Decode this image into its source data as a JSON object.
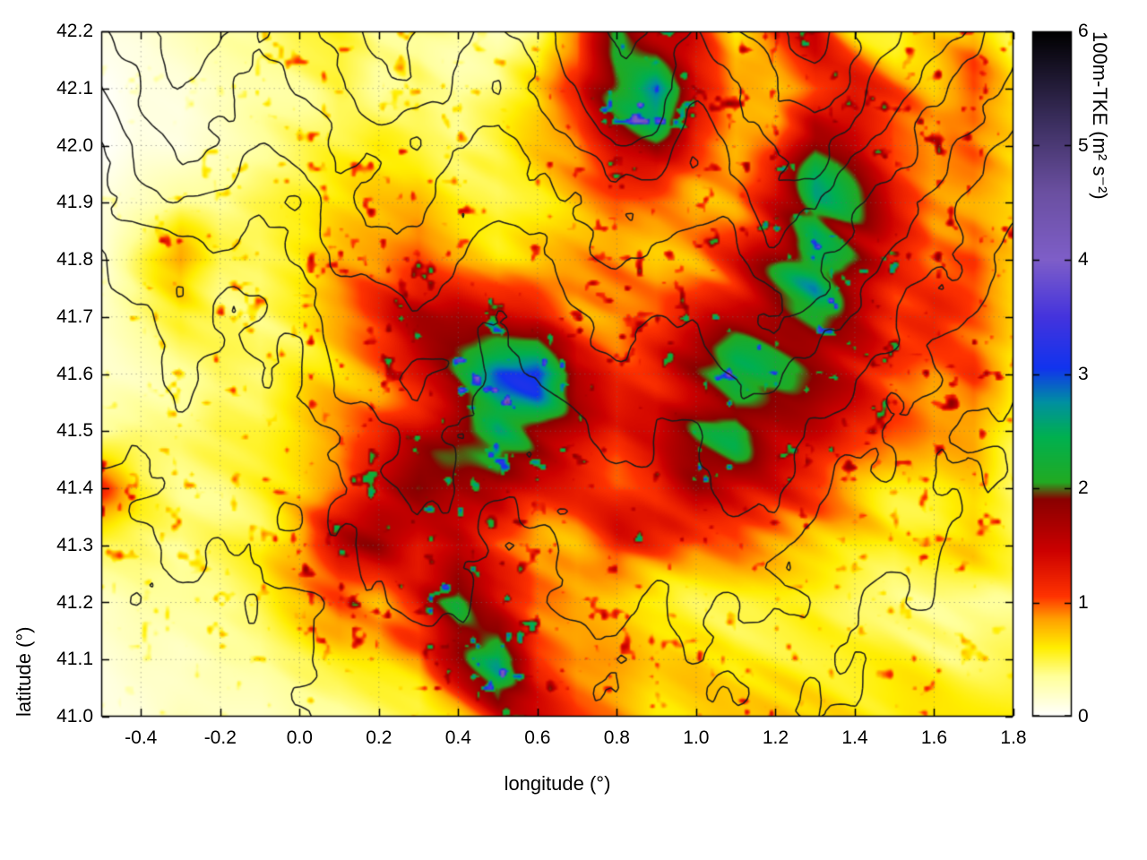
{
  "chart_data": {
    "type": "heatmap",
    "title": "",
    "xlabel": "longitude (°)",
    "ylabel": "latitude (°)",
    "x_range": [
      -0.5,
      1.8
    ],
    "y_range": [
      41.0,
      42.2
    ],
    "x_tick_labels": [
      "-0.4",
      "-0.2",
      "0.0",
      "0.2",
      "0.4",
      "0.6",
      "0.8",
      "1.0",
      "1.2",
      "1.4",
      "1.6",
      "1.8"
    ],
    "y_tick_labels": [
      "41.0",
      "41.1",
      "41.2",
      "41.3",
      "41.4",
      "41.5",
      "41.6",
      "41.7",
      "41.8",
      "41.9",
      "42.0",
      "42.1",
      "42.2"
    ],
    "grid_on": true,
    "colorbar": {
      "label": "100m-TKE (m² s⁻²)",
      "range": [
        0,
        6
      ],
      "tick_labels": [
        "0",
        "1",
        "2",
        "3",
        "4",
        "5",
        "6"
      ],
      "palette_stops": [
        [
          0.0,
          "#ffffff"
        ],
        [
          0.35,
          "#ffff99"
        ],
        [
          0.6,
          "#ffee00"
        ],
        [
          0.85,
          "#ffa000"
        ],
        [
          1.05,
          "#ff3300"
        ],
        [
          1.45,
          "#cc0000"
        ],
        [
          1.9,
          "#8a0000"
        ],
        [
          2.05,
          "#22aa22"
        ],
        [
          2.45,
          "#00b050"
        ],
        [
          2.75,
          "#0090a0"
        ],
        [
          3.05,
          "#1133ee"
        ],
        [
          3.5,
          "#4433dd"
        ],
        [
          4.0,
          "#7e5ec8"
        ],
        [
          4.6,
          "#6a4fa0"
        ],
        [
          5.2,
          "#3c2f60"
        ],
        [
          6.0,
          "#000000"
        ]
      ]
    },
    "tke_grid": {
      "units": "m² s⁻²",
      "lon_min": -0.5,
      "lon_step": 0.1,
      "lat_max": 42.2,
      "lat_step": 0.1,
      "row_order": "north_to_south",
      "values": [
        [
          0.1,
          0.1,
          0.2,
          0.3,
          0.4,
          0.5,
          0.5,
          0.4,
          0.5,
          0.3,
          0.2,
          0.4,
          1.0,
          2.6,
          1.6,
          1.2,
          0.6,
          1.0,
          1.4,
          0.8,
          0.5,
          0.6,
          0.8,
          0.5
        ],
        [
          0.0,
          0.1,
          0.1,
          0.2,
          0.3,
          0.4,
          0.5,
          0.3,
          0.4,
          0.3,
          0.4,
          0.6,
          1.0,
          2.0,
          3.0,
          1.4,
          0.8,
          0.7,
          1.0,
          1.2,
          0.9,
          0.7,
          1.0,
          0.6
        ],
        [
          0.0,
          0.1,
          0.1,
          0.2,
          0.3,
          0.4,
          0.5,
          0.6,
          0.5,
          0.4,
          0.5,
          0.7,
          0.9,
          1.4,
          1.6,
          1.0,
          0.7,
          0.9,
          1.8,
          1.5,
          1.0,
          0.8,
          0.9,
          0.7
        ],
        [
          0.1,
          0.2,
          0.3,
          0.3,
          0.4,
          0.5,
          0.6,
          0.7,
          0.8,
          0.6,
          0.5,
          0.6,
          0.8,
          1.0,
          0.9,
          0.8,
          1.0,
          1.6,
          2.4,
          1.8,
          1.2,
          0.9,
          0.8,
          0.6
        ],
        [
          0.1,
          0.5,
          1.0,
          0.5,
          0.4,
          0.5,
          0.7,
          0.8,
          1.0,
          0.8,
          0.6,
          0.7,
          0.8,
          0.9,
          0.8,
          0.9,
          1.2,
          1.8,
          2.6,
          2.0,
          1.4,
          1.0,
          1.2,
          0.8
        ],
        [
          0.2,
          0.4,
          0.6,
          0.5,
          0.5,
          0.6,
          0.8,
          1.0,
          1.4,
          1.6,
          1.5,
          1.3,
          0.9,
          0.8,
          0.9,
          1.2,
          1.6,
          2.0,
          2.2,
          1.6,
          1.2,
          1.4,
          1.0,
          0.7
        ],
        [
          0.2,
          0.3,
          0.4,
          0.5,
          0.4,
          0.6,
          0.8,
          1.0,
          1.4,
          1.8,
          2.6,
          3.0,
          1.6,
          1.2,
          1.4,
          1.8,
          2.2,
          1.8,
          1.6,
          1.4,
          1.0,
          0.9,
          1.1,
          0.6
        ],
        [
          0.3,
          0.4,
          0.4,
          0.5,
          0.5,
          0.6,
          0.7,
          0.9,
          1.3,
          2.0,
          2.4,
          1.8,
          1.4,
          1.0,
          1.2,
          2.0,
          2.6,
          1.8,
          1.4,
          1.0,
          0.8,
          0.7,
          0.8,
          0.5
        ],
        [
          1.0,
          0.5,
          0.4,
          0.4,
          0.5,
          0.6,
          0.8,
          1.2,
          1.6,
          1.5,
          1.6,
          1.2,
          1.0,
          0.9,
          1.1,
          1.6,
          1.4,
          1.2,
          1.0,
          0.8,
          0.6,
          0.5,
          0.6,
          0.4
        ],
        [
          0.4,
          0.4,
          0.3,
          0.4,
          0.5,
          0.9,
          1.5,
          1.6,
          1.2,
          1.4,
          1.0,
          0.8,
          0.9,
          1.3,
          1.0,
          0.8,
          0.9,
          0.8,
          0.7,
          0.6,
          0.5,
          0.6,
          0.7,
          0.5
        ],
        [
          0.2,
          0.3,
          0.3,
          0.3,
          0.4,
          0.6,
          0.9,
          0.8,
          1.4,
          2.4,
          1.6,
          1.0,
          0.8,
          0.7,
          0.6,
          0.5,
          0.5,
          0.5,
          0.5,
          0.4,
          0.4,
          0.4,
          0.4,
          0.4
        ],
        [
          0.1,
          0.2,
          0.2,
          0.3,
          0.3,
          0.4,
          0.5,
          0.6,
          0.7,
          1.6,
          2.6,
          1.2,
          0.9,
          0.8,
          0.6,
          0.6,
          0.5,
          0.5,
          0.5,
          0.5,
          0.5,
          0.5,
          0.5,
          0.5
        ],
        [
          0.1,
          0.1,
          0.2,
          0.2,
          0.2,
          0.3,
          0.3,
          0.4,
          0.5,
          0.8,
          1.4,
          1.2,
          0.9,
          0.8,
          0.6,
          0.6,
          0.6,
          0.6,
          0.6,
          0.6,
          0.6,
          0.6,
          0.6,
          0.6
        ]
      ]
    },
    "terrain_contours": {
      "description": "black terrain elevation contour lines overlaid on TKE field",
      "levels_m": [
        200,
        400,
        600,
        800,
        1000,
        1200,
        1400,
        1600,
        1800
      ],
      "grid": {
        "lon_min": -0.5,
        "lon_step": 0.1,
        "lat_max": 42.2,
        "lat_step": 0.1,
        "row_order": "north_to_south",
        "values": [
          [
            900,
            1100,
            1300,
            1200,
            1000,
            1100,
            1300,
            1500,
            1400,
            1200,
            1100,
            1300,
            1500,
            1700,
            1600,
            1400,
            1500,
            1700,
            1900,
            1700,
            1500,
            1300,
            1100,
            900
          ],
          [
            800,
            1000,
            1200,
            1100,
            900,
            1000,
            1200,
            1400,
            1300,
            1100,
            1000,
            1200,
            1400,
            1600,
            1500,
            1300,
            1400,
            1600,
            1700,
            1500,
            1300,
            1100,
            900,
            700
          ],
          [
            600,
            800,
            1000,
            900,
            800,
            900,
            1000,
            1100,
            1200,
            1000,
            900,
            1000,
            1200,
            1400,
            1300,
            1100,
            1200,
            1400,
            1500,
            1300,
            1100,
            900,
            700,
            500
          ],
          [
            500,
            700,
            800,
            700,
            600,
            700,
            900,
            1000,
            1000,
            900,
            800,
            900,
            1000,
            1100,
            1100,
            1000,
            1100,
            1300,
            1300,
            1100,
            900,
            700,
            600,
            400
          ],
          [
            400,
            500,
            600,
            500,
            500,
            600,
            800,
            900,
            900,
            800,
            700,
            800,
            900,
            1000,
            900,
            900,
            1000,
            1100,
            1100,
            900,
            700,
            600,
            500,
            300
          ],
          [
            300,
            400,
            500,
            400,
            400,
            500,
            700,
            800,
            800,
            700,
            600,
            700,
            800,
            900,
            800,
            800,
            900,
            1000,
            900,
            700,
            600,
            500,
            400,
            300
          ],
          [
            250,
            300,
            400,
            350,
            300,
            400,
            600,
            700,
            800,
            700,
            600,
            600,
            700,
            800,
            700,
            700,
            800,
            800,
            700,
            600,
            500,
            400,
            300,
            200
          ],
          [
            200,
            250,
            300,
            300,
            250,
            350,
            500,
            600,
            700,
            600,
            500,
            500,
            600,
            700,
            600,
            600,
            700,
            700,
            600,
            500,
            400,
            300,
            250,
            150
          ],
          [
            150,
            200,
            250,
            250,
            200,
            300,
            400,
            500,
            600,
            500,
            450,
            450,
            500,
            600,
            500,
            500,
            600,
            600,
            500,
            400,
            300,
            250,
            200,
            100
          ],
          [
            120,
            150,
            200,
            200,
            180,
            250,
            350,
            400,
            500,
            400,
            400,
            400,
            450,
            500,
            450,
            450,
            500,
            500,
            400,
            300,
            250,
            200,
            150,
            80
          ],
          [
            100,
            120,
            150,
            150,
            150,
            200,
            300,
            350,
            400,
            350,
            350,
            350,
            400,
            450,
            400,
            400,
            450,
            400,
            300,
            250,
            200,
            150,
            100,
            50
          ],
          [
            80,
            100,
            120,
            120,
            120,
            150,
            250,
            300,
            350,
            300,
            300,
            300,
            350,
            400,
            350,
            350,
            400,
            300,
            250,
            200,
            150,
            100,
            50,
            20
          ],
          [
            60,
            80,
            100,
            100,
            100,
            120,
            200,
            250,
            300,
            250,
            250,
            250,
            300,
            350,
            300,
            300,
            350,
            250,
            200,
            150,
            100,
            50,
            20,
            10
          ]
        ]
      }
    }
  }
}
